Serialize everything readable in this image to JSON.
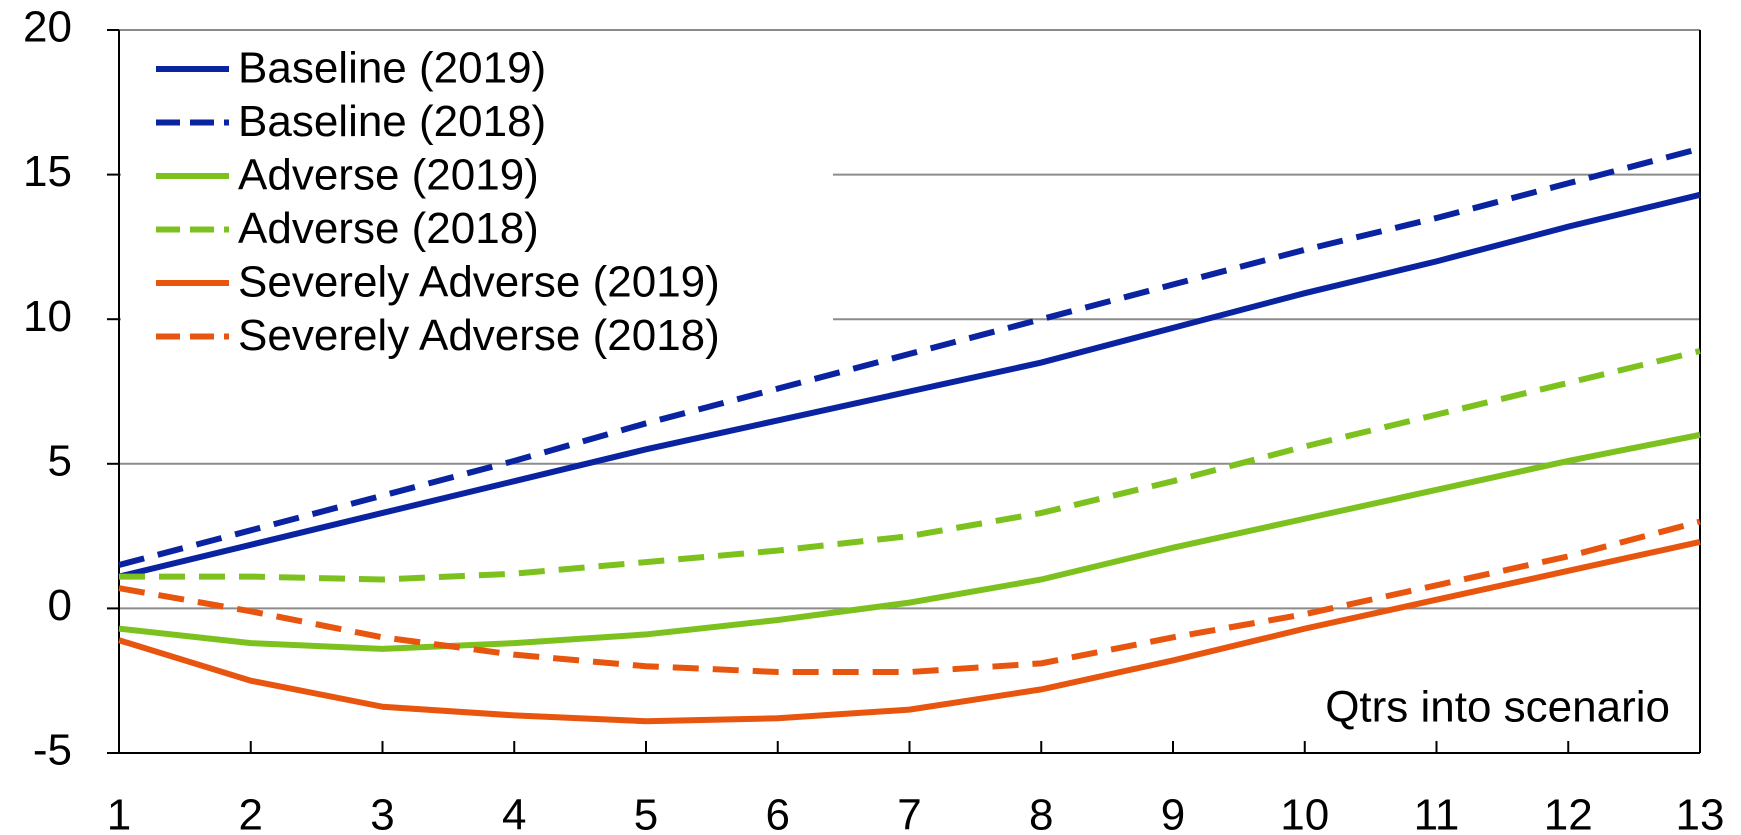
{
  "chart_data": {
    "type": "line",
    "x": [
      1,
      2,
      3,
      4,
      5,
      6,
      7,
      8,
      9,
      10,
      11,
      12,
      13
    ],
    "xlim": [
      1,
      13
    ],
    "xticks": [
      1,
      2,
      3,
      4,
      5,
      6,
      7,
      8,
      9,
      10,
      11,
      12,
      13
    ],
    "ylim": [
      -5,
      20
    ],
    "yticks": [
      -5,
      0,
      5,
      10,
      15,
      20
    ],
    "grid": true,
    "legend": "upper left",
    "annotation": "Qtrs into scenario",
    "series": [
      {
        "name": "Baseline (2019)",
        "color": "#0a23a0",
        "dash": false,
        "values": [
          1.1,
          2.2,
          3.3,
          4.4,
          5.5,
          6.5,
          7.5,
          8.5,
          9.7,
          10.9,
          12.0,
          13.2,
          14.3
        ]
      },
      {
        "name": "Baseline (2018)",
        "color": "#0a23a0",
        "dash": true,
        "values": [
          1.5,
          2.7,
          3.9,
          5.1,
          6.4,
          7.6,
          8.8,
          10.0,
          11.2,
          12.4,
          13.5,
          14.7,
          15.9
        ]
      },
      {
        "name": "Adverse (2019)",
        "color": "#7dc11f",
        "dash": false,
        "values": [
          -0.7,
          -1.2,
          -1.4,
          -1.2,
          -0.9,
          -0.4,
          0.2,
          1.0,
          2.1,
          3.1,
          4.1,
          5.1,
          6.0
        ]
      },
      {
        "name": "Adverse (2018)",
        "color": "#7dc11f",
        "dash": true,
        "values": [
          1.1,
          1.1,
          1.0,
          1.2,
          1.6,
          2.0,
          2.5,
          3.3,
          4.4,
          5.6,
          6.7,
          7.8,
          8.9
        ]
      },
      {
        "name": "Severely Adverse (2019)",
        "color": "#e8550e",
        "dash": false,
        "values": [
          -1.1,
          -2.5,
          -3.4,
          -3.7,
          -3.9,
          -3.8,
          -3.5,
          -2.8,
          -1.8,
          -0.7,
          0.3,
          1.3,
          2.3
        ]
      },
      {
        "name": "Severely Adverse (2018)",
        "color": "#e8550e",
        "dash": true,
        "values": [
          0.7,
          -0.1,
          -1.0,
          -1.6,
          -2.0,
          -2.2,
          -2.2,
          -1.9,
          -1.0,
          -0.2,
          0.8,
          1.8,
          3.0
        ]
      }
    ]
  }
}
